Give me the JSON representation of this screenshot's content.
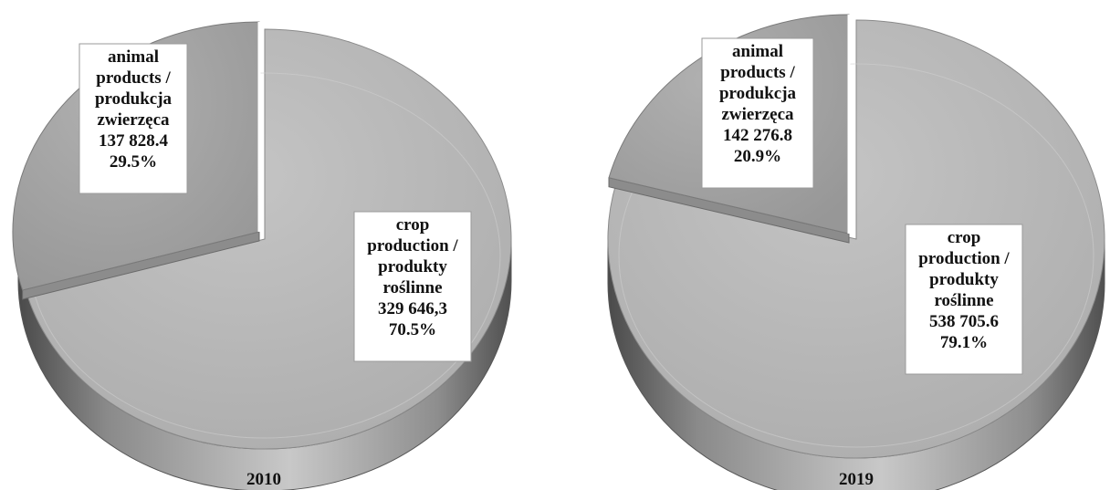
{
  "chart_data": [
    {
      "type": "pie",
      "title": "2010",
      "slices": [
        {
          "name": "crop production / produkty roślinne",
          "value": 329646.3,
          "percent": 70.5,
          "label_lines": [
            "crop",
            "production /",
            "produkty",
            "roślinne",
            "329 646,3",
            "70.5%"
          ]
        },
        {
          "name": "animal products / produkcja zwierzęca",
          "value": 137828.4,
          "percent": 29.5,
          "exploded": true,
          "label_lines": [
            "animal",
            "products /",
            "produkcja",
            "zwierzęca",
            "137 828.4",
            "29.5%"
          ]
        }
      ],
      "colors": {
        "crop": "#b9b9b9",
        "animal": "#a5a5a5",
        "side": "#6f6f6f"
      }
    },
    {
      "type": "pie",
      "title": "2019",
      "slices": [
        {
          "name": "crop production / produkty roślinne",
          "value": 538705.6,
          "percent": 79.1,
          "label_lines": [
            "crop",
            "production /",
            "produkty",
            "roślinne",
            "538 705.6",
            "79.1%"
          ]
        },
        {
          "name": "animal products / produkcja zwierzęca",
          "value": 142276.8,
          "percent": 20.9,
          "exploded": true,
          "label_lines": [
            "animal",
            "products /",
            "produkcja",
            "zwierzęca",
            "142 276.8",
            "20.9%"
          ]
        }
      ],
      "colors": {
        "crop": "#b9b9b9",
        "animal": "#a5a5a5",
        "side": "#6f6f6f"
      }
    }
  ]
}
